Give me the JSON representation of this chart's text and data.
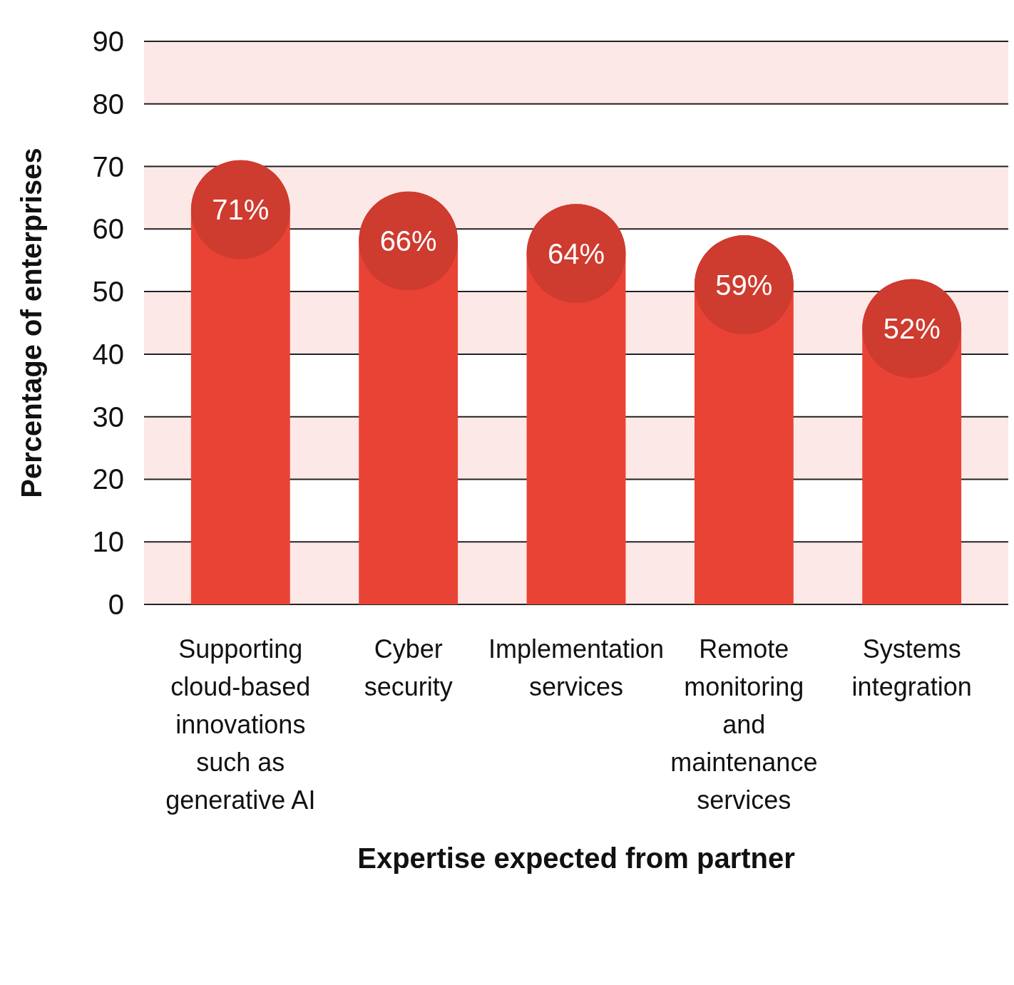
{
  "chart_data": {
    "type": "bar",
    "xlabel": "Expertise expected from partner",
    "ylabel": "Percentage of enterprises",
    "categories": [
      "Supporting cloud-based innovations such as generative AI",
      "Cyber security",
      "Implementation services",
      "Remote monitoring and maintenance services",
      "Systems integration"
    ],
    "values": [
      71,
      66,
      64,
      59,
      52
    ],
    "color": "#e94335",
    "value_labels": [
      "71%",
      "66%",
      "64%",
      "59%",
      "52%"
    ],
    "ylim": [
      0,
      90
    ],
    "yticks": [
      0,
      10,
      20,
      30,
      40,
      50,
      60,
      70,
      80,
      90
    ],
    "grid": "y",
    "bands": [
      {
        "axis": "y",
        "from": 0,
        "to": 10,
        "color": "#fce8e6"
      },
      {
        "axis": "y",
        "from": 20,
        "to": 30,
        "color": "#fce8e6"
      },
      {
        "axis": "y",
        "from": 40,
        "to": 50,
        "color": "#fce8e6"
      },
      {
        "axis": "y",
        "from": 60,
        "to": 70,
        "color": "#fce8e6"
      },
      {
        "axis": "y",
        "from": 80,
        "to": 90,
        "color": "#fce8e6"
      }
    ]
  }
}
